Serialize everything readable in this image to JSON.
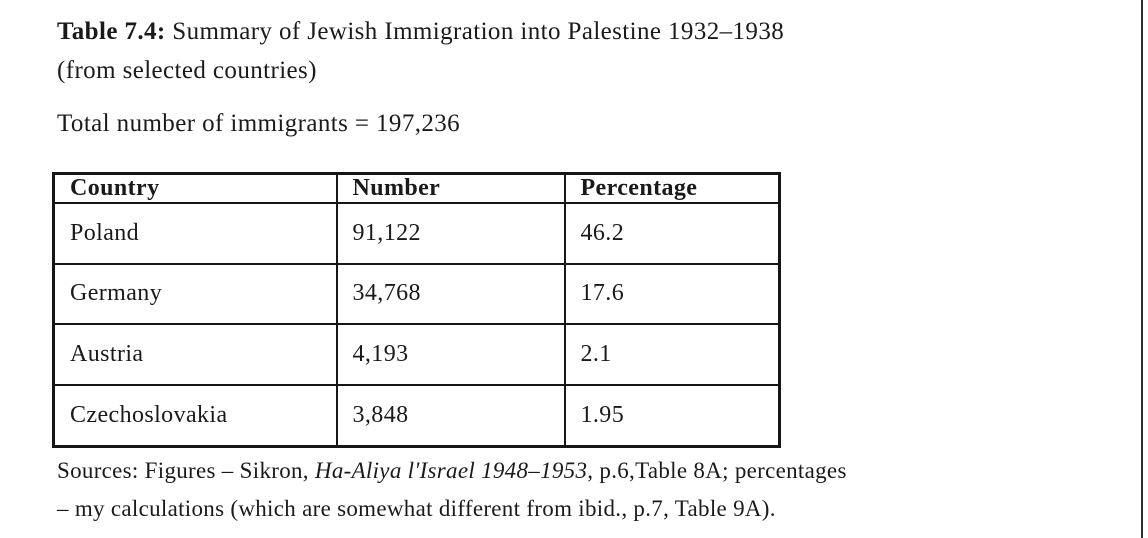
{
  "document": {
    "caption": {
      "label": "Table 7.4:",
      "line1_rest": " Summary of Jewish Immigration into Palestine 1932–1938",
      "line2": "(from selected countries)"
    },
    "total_line": "Total number of immigrants = 197,236",
    "sources": {
      "line1_prefix": "Sources: Figures – Sikron, ",
      "line1_italic": "Ha-Aliya l'Israel 1948–1953",
      "line1_suffix": ", p.6,Table 8A; percentages",
      "line2": "– my calculations (which are somewhat different from ibid., p.7, Table 9A)."
    }
  },
  "table": {
    "headers": [
      "Country",
      "Number",
      "Percentage"
    ],
    "rows": [
      [
        "Poland",
        "91,122",
        "46.2"
      ],
      [
        "Germany",
        "34,768",
        "17.6"
      ],
      [
        "Austria",
        "4,193",
        "2.1"
      ],
      [
        "Czechoslovakia",
        "3,848",
        "1.95"
      ]
    ]
  },
  "colors": {
    "text": "#1a1a1a",
    "table_border": "#161616",
    "background": "#ffffff",
    "right_edge_line": "#2f2f2f"
  }
}
